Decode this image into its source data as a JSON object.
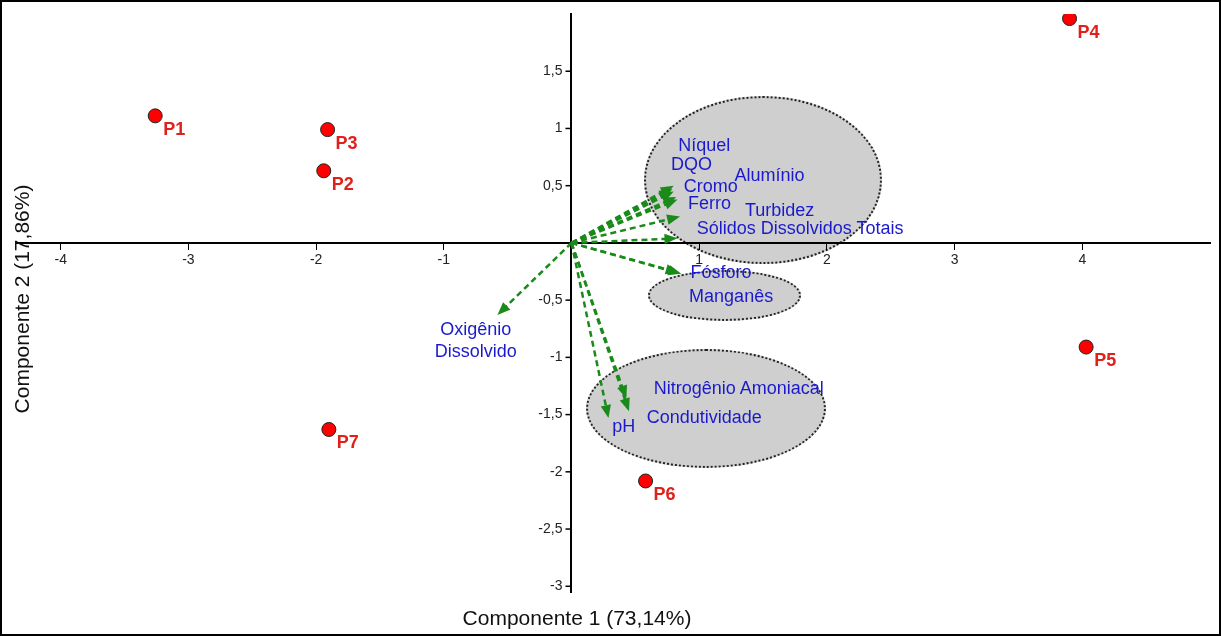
{
  "chart_data": {
    "type": "scatter",
    "xlabel": "Componente 1 (73,14%)",
    "ylabel": "Componente 2 (17,86%)",
    "xlim": [
      -4.35,
      5.0
    ],
    "ylim": [
      -3.05,
      2.0
    ],
    "xticks": [
      -4,
      -3,
      -2,
      -1,
      1,
      2,
      3,
      4
    ],
    "yticks": [
      {
        "value": -3,
        "label": "-3"
      },
      {
        "value": -2.5,
        "label": "-2,5"
      },
      {
        "value": -2,
        "label": "-2"
      },
      {
        "value": -1.5,
        "label": "-1,5"
      },
      {
        "value": -1,
        "label": "-1"
      },
      {
        "value": -0.5,
        "label": "-0,5"
      },
      {
        "value": 0.5,
        "label": "0,5"
      },
      {
        "value": 1,
        "label": "1"
      },
      {
        "value": 1.5,
        "label": "1,5"
      }
    ],
    "grid": false,
    "series": [
      {
        "color": "#ff0000",
        "marker": "circle",
        "x": [
          -3.26,
          -1.94,
          -1.91,
          3.9,
          4.03,
          0.58,
          -1.9
        ],
        "values": [
          1.11,
          0.63,
          0.99,
          1.96,
          -0.91,
          -2.08,
          -1.63
        ],
        "value_labels": [
          "P1",
          "P2",
          "P3",
          "P4",
          "P5",
          "P6",
          "P7"
        ]
      }
    ],
    "annotations": [
      "Níquel",
      "DQO",
      "Alumínio",
      "Cromo",
      "Ferro",
      "Turbidez",
      "Sólidos Dissolvidos Totais",
      "Fósforo",
      "Manganês",
      "Oxigênio Dissolvido",
      "Nitrogênio Amoniacal",
      "Condutividade",
      "pH"
    ]
  }
}
